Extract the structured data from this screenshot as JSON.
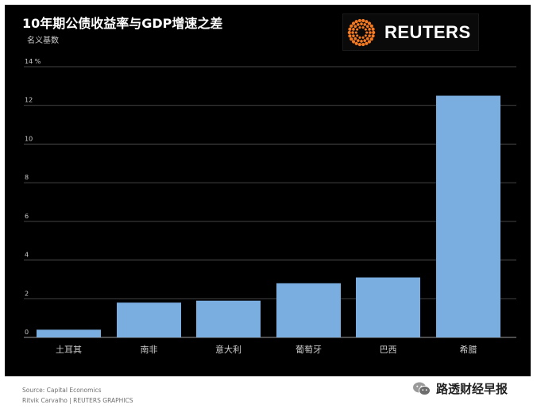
{
  "title": "10年期公债收益率与GDP增速之差",
  "subtitle": "名义基数",
  "logo": {
    "text": "REUTERS",
    "icon": "reuters-logo-icon",
    "accent": "#f47920"
  },
  "footer": {
    "source": "Source: Capital Economics",
    "credit": "Ritvik Carvalho   | REUTERS GRAPHICS"
  },
  "watermark": {
    "text": "路透财经早报",
    "icon": "wechat-icon"
  },
  "chart_data": {
    "type": "bar",
    "categories": [
      "土耳其",
      "南非",
      "意大利",
      "葡萄牙",
      "巴西",
      "希腊"
    ],
    "values": [
      0.4,
      1.8,
      1.9,
      2.8,
      3.1,
      12.5
    ],
    "ylim": [
      0,
      14
    ],
    "yticks": [
      "0",
      "2",
      "4",
      "6",
      "8",
      "10",
      "12",
      "14 %"
    ],
    "ytick_values": [
      0,
      2,
      4,
      6,
      8,
      10,
      12,
      14
    ],
    "grid": true,
    "bar_color": "#7aade0",
    "grid_color": "#5a5a5a",
    "background": "#000000",
    "text_color": "#cccccc"
  }
}
